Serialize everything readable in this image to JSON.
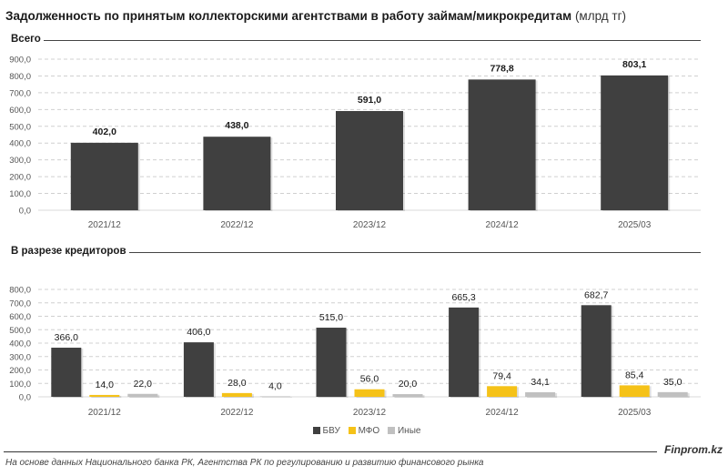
{
  "title": "Задолженность по принятым коллекторскими агентствами в работу займам/микрокредитам",
  "unit": "(млрд тг)",
  "footer": {
    "source": "На основе данных Национального банка РК, Агентства РК по регулированию и развитию финансового рынка",
    "brand": "Finprom.kz"
  },
  "colors": {
    "bvu": "#404040",
    "mfo": "#f5c218",
    "other": "#c0c0c0"
  },
  "chart_data": [
    {
      "type": "bar",
      "title": "Всего",
      "categories": [
        "2021/12",
        "2022/12",
        "2023/12",
        "2024/12",
        "2025/03"
      ],
      "values": [
        402.0,
        438.0,
        591.0,
        778.8,
        803.1
      ],
      "labels": [
        "402,0",
        "438,0",
        "591,0",
        "778,8",
        "803,1"
      ],
      "ylim": [
        0,
        900
      ],
      "yticks": [
        "0,0",
        "100,0",
        "200,0",
        "300,0",
        "400,0",
        "500,0",
        "600,0",
        "700,0",
        "800,0",
        "900,0"
      ],
      "grid": true,
      "xlabel": "",
      "ylabel": ""
    },
    {
      "type": "bar",
      "title": "В разрезе кредиторов",
      "categories": [
        "2021/12",
        "2022/12",
        "2023/12",
        "2024/12",
        "2025/03"
      ],
      "series": [
        {
          "name": "БВУ",
          "values": [
            366.0,
            406.0,
            515.0,
            665.3,
            682.7
          ],
          "labels": [
            "366,0",
            "406,0",
            "515,0",
            "665,3",
            "682,7"
          ]
        },
        {
          "name": "МФО",
          "values": [
            14.0,
            28.0,
            56.0,
            79.4,
            85.4
          ],
          "labels": [
            "14,0",
            "28,0",
            "56,0",
            "79,4",
            "85,4"
          ]
        },
        {
          "name": "Иные",
          "values": [
            22.0,
            4.0,
            20.0,
            34.1,
            35.0
          ],
          "labels": [
            "22,0",
            "4,0",
            "20,0",
            "34,1",
            "35,0"
          ]
        }
      ],
      "ylim": [
        0,
        800
      ],
      "yticks": [
        "0,0",
        "100,0",
        "200,0",
        "300,0",
        "400,0",
        "500,0",
        "600,0",
        "700,0",
        "800,0"
      ],
      "grid": true,
      "legend": "bottom-center",
      "xlabel": "",
      "ylabel": ""
    }
  ]
}
